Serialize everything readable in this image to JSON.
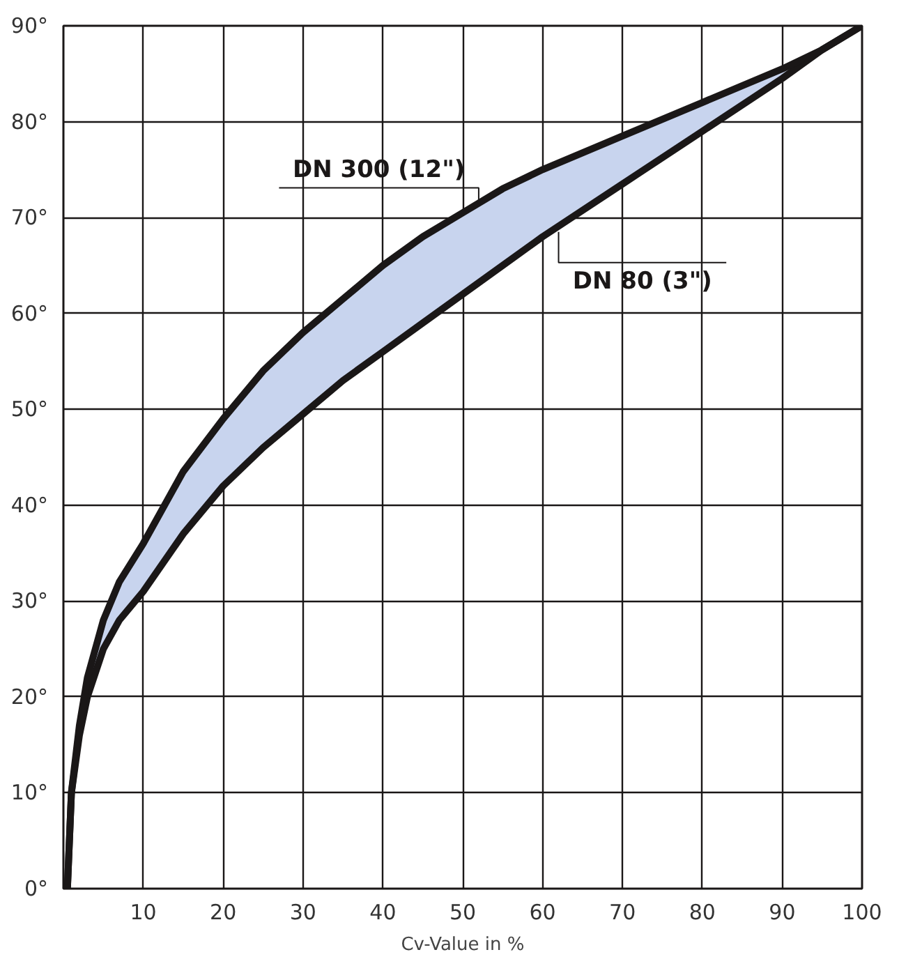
{
  "chart_data": {
    "type": "line",
    "xlabel": "Cv-Value in %",
    "x": [
      0.5,
      1,
      2,
      3,
      5,
      7,
      10,
      15,
      20,
      25,
      30,
      35,
      40,
      45,
      50,
      55,
      60,
      70,
      80,
      90,
      95,
      100
    ],
    "series": [
      {
        "color": "#1a1717",
        "values": [
          0,
          10,
          17,
          22,
          28,
          32,
          36,
          43.5,
          49,
          54,
          58,
          61.5,
          65,
          68,
          70.5,
          73,
          75,
          78.5,
          82,
          85.5,
          87.5,
          90
        ],
        "lower": [
          0,
          10,
          16,
          20,
          25,
          28,
          31,
          37,
          42,
          46,
          49.5,
          53,
          56,
          59,
          62,
          65,
          68,
          73.5,
          79,
          84.5,
          87.5,
          90
        ],
        "upper": [
          0,
          10,
          17,
          22,
          28,
          32,
          36,
          43.5,
          49,
          54,
          58,
          61.5,
          65,
          68,
          70.5,
          73,
          75,
          78.5,
          82,
          85.5,
          87.5,
          90
        ]
      }
    ],
    "annotations": [
      {
        "text": "DN 300 (12\")",
        "x": 52,
        "y": 71.5
      },
      {
        "text": "DN 80 (3\")",
        "x": 62,
        "y": 68.5
      }
    ],
    "xlim": [
      0,
      100
    ],
    "ylim": [
      0,
      90
    ],
    "xticks": [
      {
        "value": 0,
        "label": null
      },
      10,
      20,
      30,
      40,
      50,
      60,
      70,
      80,
      90,
      100
    ],
    "yticks": [
      {
        "value": 0,
        "label": "0°"
      },
      {
        "value": 10,
        "label": "10°"
      },
      {
        "value": 20,
        "label": "20°"
      },
      {
        "value": 30,
        "label": "30°"
      },
      {
        "value": 40,
        "label": "40°"
      },
      {
        "value": 50,
        "label": "50°"
      },
      {
        "value": 60,
        "label": "60°"
      },
      {
        "value": 70,
        "label": "70°"
      },
      {
        "value": 80,
        "label": "80°"
      },
      {
        "value": 90,
        "label": "90°"
      }
    ],
    "grid": true,
    "line_style": "solid"
  }
}
